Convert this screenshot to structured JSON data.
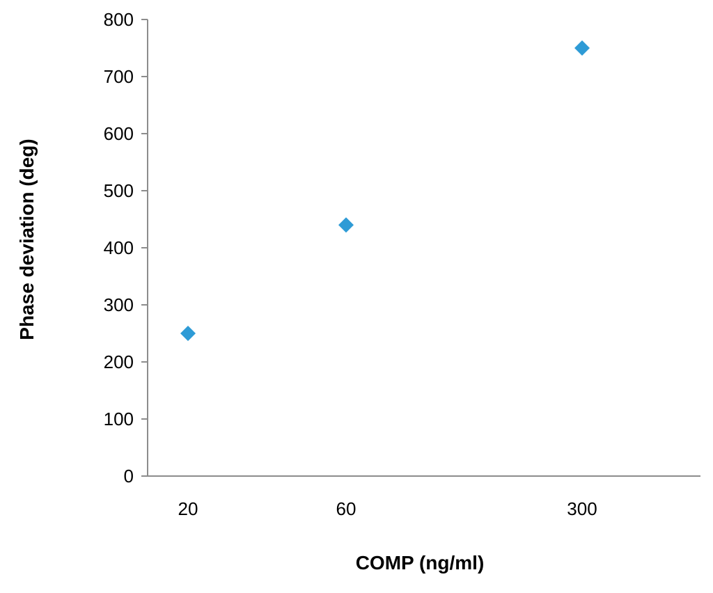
{
  "chart_data": {
    "type": "scatter",
    "title": "",
    "xlabel": "COMP (ng/ml)",
    "ylabel": "Phase deviation (deg)",
    "categories": [
      "20",
      "60",
      "300"
    ],
    "series": [
      {
        "values": [
          250,
          440,
          750
        ]
      }
    ],
    "ylim": [
      0,
      800
    ],
    "y_ticks": [
      0,
      100,
      200,
      300,
      400,
      500,
      600,
      700,
      800
    ],
    "grid": false,
    "legend": "none",
    "marker": "diamond",
    "colors": {
      "series": "#2e9bd6",
      "axis": "#8c8c8c"
    }
  }
}
